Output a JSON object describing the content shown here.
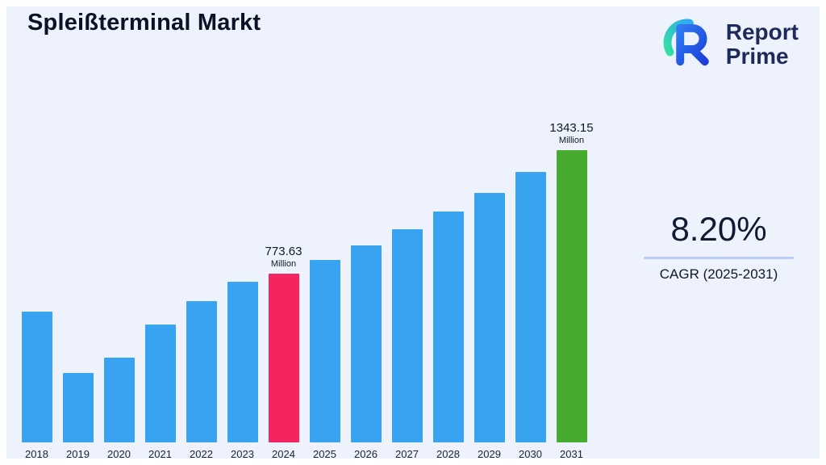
{
  "title": "Spleißterminal Markt",
  "logo": {
    "line1": "Report",
    "line2": "Prime",
    "icon": "report-prime-logo-icon"
  },
  "cagr": {
    "value": "8.20%",
    "label": "CAGR (2025-2031)"
  },
  "chart_data": {
    "type": "bar",
    "title": "Spleißterminal Markt",
    "xlabel": "",
    "ylabel": "",
    "ylim": [
      0,
      1400
    ],
    "grid": false,
    "legend": "none",
    "categories": [
      "2018",
      "2019",
      "2020",
      "2021",
      "2022",
      "2023",
      "2024",
      "2025",
      "2026",
      "2027",
      "2028",
      "2029",
      "2030",
      "2031"
    ],
    "values": [
      600,
      320,
      390,
      540,
      650,
      740,
      773.63,
      837.07,
      905.71,
      979.98,
      1060.34,
      1147.29,
      1241.36,
      1343.15
    ],
    "unit": "Million",
    "annotations": [
      {
        "category": "2024",
        "text": "773.63",
        "unit": "Million"
      },
      {
        "category": "2031",
        "text": "1343.15",
        "unit": "Million"
      }
    ],
    "bar_colors": {
      "default": "#38A3F1",
      "2024": "#F4245E",
      "2031": "#47AB2F"
    },
    "background_color": "#edf2fc",
    "accent_divider_color": "#b9cdf4"
  }
}
